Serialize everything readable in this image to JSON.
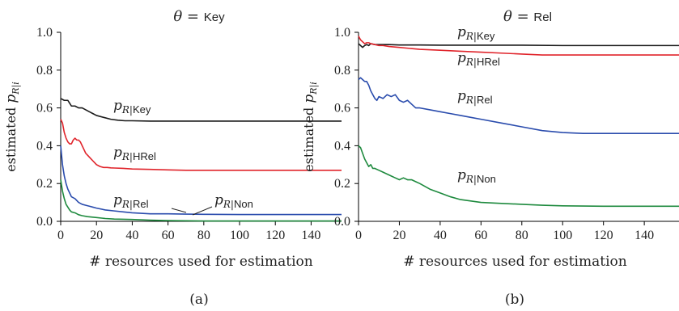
{
  "chart_data": [
    {
      "type": "line",
      "title_prefix": "θ =",
      "title_value": "Key",
      "xlabel": "# resources used for estimation",
      "ylabel_text": "estimated",
      "ylabel_math": "p",
      "ylabel_sub": "R|i",
      "caption": "(a)",
      "xlim": [
        0,
        157
      ],
      "ylim": [
        0,
        1.0
      ],
      "xticks": [
        "0",
        "20",
        "40",
        "60",
        "80",
        "100",
        "120",
        "140"
      ],
      "yticks": [
        "0.0",
        "0.2",
        "0.4",
        "0.6",
        "0.8",
        "1.0"
      ],
      "grid": false,
      "series": [
        {
          "name": "Key",
          "label_prefix": "p",
          "label_sub": "R|",
          "label_name": "Key",
          "color": "#1a1a1a",
          "x": [
            0,
            2,
            4,
            6,
            8,
            10,
            12,
            14,
            16,
            18,
            20,
            24,
            28,
            32,
            36,
            40,
            50,
            60,
            80,
            100,
            120,
            140,
            157
          ],
          "y": [
            0.65,
            0.64,
            0.64,
            0.61,
            0.61,
            0.6,
            0.6,
            0.59,
            0.58,
            0.57,
            0.56,
            0.55,
            0.54,
            0.535,
            0.532,
            0.532,
            0.53,
            0.53,
            0.53,
            0.53,
            0.53,
            0.53,
            0.53
          ]
        },
        {
          "name": "HRel",
          "label_prefix": "p",
          "label_sub": "R|",
          "label_name": "HRel",
          "color": "#e0242b",
          "x": [
            0,
            1,
            2,
            3,
            4,
            5,
            6,
            7,
            8,
            9,
            10,
            11,
            12,
            13,
            14,
            15,
            16,
            17,
            18,
            19,
            20,
            22,
            24,
            26,
            28,
            30,
            35,
            40,
            50,
            60,
            70,
            80,
            100,
            120,
            140,
            157
          ],
          "y": [
            0.54,
            0.52,
            0.47,
            0.44,
            0.42,
            0.41,
            0.41,
            0.43,
            0.44,
            0.43,
            0.43,
            0.42,
            0.4,
            0.38,
            0.36,
            0.35,
            0.34,
            0.33,
            0.32,
            0.31,
            0.3,
            0.29,
            0.285,
            0.285,
            0.283,
            0.282,
            0.28,
            0.277,
            0.275,
            0.272,
            0.27,
            0.27,
            0.27,
            0.27,
            0.27,
            0.27
          ]
        },
        {
          "name": "Rel",
          "label_prefix": "p",
          "label_sub": "R|",
          "label_name": "Rel",
          "color": "#2a4cad",
          "x": [
            0,
            1,
            2,
            3,
            4,
            5,
            6,
            8,
            10,
            12,
            14,
            16,
            18,
            20,
            25,
            30,
            35,
            40,
            50,
            60,
            70,
            80,
            100,
            120,
            140,
            157
          ],
          "y": [
            0.4,
            0.3,
            0.24,
            0.2,
            0.17,
            0.15,
            0.13,
            0.12,
            0.1,
            0.09,
            0.085,
            0.08,
            0.075,
            0.07,
            0.06,
            0.055,
            0.05,
            0.045,
            0.04,
            0.04,
            0.038,
            0.037,
            0.036,
            0.036,
            0.036,
            0.036
          ]
        },
        {
          "name": "Non",
          "label_prefix": "p",
          "label_sub": "R|",
          "label_name": "Non",
          "color": "#1e8a3e",
          "x": [
            0,
            1,
            2,
            3,
            4,
            5,
            6,
            8,
            10,
            12,
            15,
            20,
            25,
            30,
            40,
            50,
            60,
            80,
            100,
            120,
            140,
            157
          ],
          "y": [
            0.22,
            0.16,
            0.12,
            0.09,
            0.075,
            0.06,
            0.05,
            0.045,
            0.035,
            0.03,
            0.025,
            0.02,
            0.015,
            0.012,
            0.01,
            0.006,
            0.004,
            0.002,
            0.002,
            0.002,
            0.002,
            0.002
          ]
        }
      ]
    },
    {
      "type": "line",
      "title_prefix": "θ =",
      "title_value": "Rel",
      "xlabel": "# resources used for estimation",
      "ylabel_text": "estimated",
      "ylabel_math": "p",
      "ylabel_sub": "R|i",
      "caption": "(b)",
      "xlim": [
        0,
        157
      ],
      "ylim": [
        0,
        1.0
      ],
      "xticks": [
        "0",
        "20",
        "40",
        "60",
        "80",
        "100",
        "120",
        "140"
      ],
      "yticks": [
        "0.0",
        "0.2",
        "0.4",
        "0.6",
        "0.8",
        "1.0"
      ],
      "grid": false,
      "series": [
        {
          "name": "Key",
          "label_prefix": "p",
          "label_sub": "R|",
          "label_name": "Key",
          "color": "#1a1a1a",
          "x": [
            0,
            1,
            2,
            3,
            4,
            5,
            6,
            8,
            10,
            15,
            20,
            30,
            40,
            60,
            80,
            100,
            120,
            140,
            157
          ],
          "y": [
            0.94,
            0.93,
            0.92,
            0.93,
            0.935,
            0.93,
            0.94,
            0.935,
            0.935,
            0.935,
            0.933,
            0.933,
            0.932,
            0.932,
            0.932,
            0.93,
            0.93,
            0.93,
            0.93
          ]
        },
        {
          "name": "HRel",
          "label_prefix": "p",
          "label_sub": "R|",
          "label_name": "HRel",
          "color": "#e0242b",
          "x": [
            0,
            1,
            2,
            3,
            4,
            5,
            6,
            8,
            10,
            12,
            15,
            20,
            25,
            30,
            40,
            50,
            60,
            70,
            80,
            90,
            100,
            120,
            140,
            157
          ],
          "y": [
            0.98,
            0.96,
            0.95,
            0.94,
            0.945,
            0.945,
            0.94,
            0.935,
            0.93,
            0.93,
            0.925,
            0.92,
            0.915,
            0.91,
            0.905,
            0.9,
            0.895,
            0.89,
            0.885,
            0.88,
            0.88,
            0.88,
            0.88,
            0.88
          ]
        },
        {
          "name": "Rel",
          "label_prefix": "p",
          "label_sub": "R|",
          "label_name": "Rel",
          "color": "#2a4cad",
          "x": [
            0,
            1,
            2,
            3,
            4,
            5,
            6,
            7,
            8,
            9,
            10,
            12,
            14,
            16,
            18,
            20,
            22,
            24,
            26,
            28,
            30,
            35,
            40,
            45,
            50,
            55,
            60,
            70,
            80,
            90,
            100,
            110,
            120,
            140,
            157
          ],
          "y": [
            0.75,
            0.76,
            0.75,
            0.74,
            0.74,
            0.72,
            0.69,
            0.67,
            0.65,
            0.64,
            0.66,
            0.65,
            0.67,
            0.66,
            0.67,
            0.64,
            0.63,
            0.64,
            0.62,
            0.6,
            0.6,
            0.59,
            0.58,
            0.57,
            0.56,
            0.55,
            0.54,
            0.52,
            0.5,
            0.48,
            0.47,
            0.465,
            0.465,
            0.465,
            0.465
          ]
        },
        {
          "name": "Non",
          "label_prefix": "p",
          "label_sub": "R|",
          "label_name": "Non",
          "color": "#1e8a3e",
          "x": [
            0,
            1,
            2,
            3,
            4,
            5,
            6,
            7,
            8,
            10,
            12,
            14,
            16,
            18,
            20,
            22,
            24,
            26,
            28,
            30,
            35,
            40,
            45,
            50,
            60,
            70,
            80,
            90,
            100,
            120,
            140,
            157
          ],
          "y": [
            0.4,
            0.39,
            0.36,
            0.33,
            0.31,
            0.29,
            0.3,
            0.28,
            0.28,
            0.27,
            0.26,
            0.25,
            0.24,
            0.23,
            0.22,
            0.23,
            0.22,
            0.22,
            0.21,
            0.2,
            0.17,
            0.15,
            0.13,
            0.115,
            0.1,
            0.095,
            0.09,
            0.085,
            0.082,
            0.08,
            0.08,
            0.08
          ]
        }
      ]
    }
  ]
}
